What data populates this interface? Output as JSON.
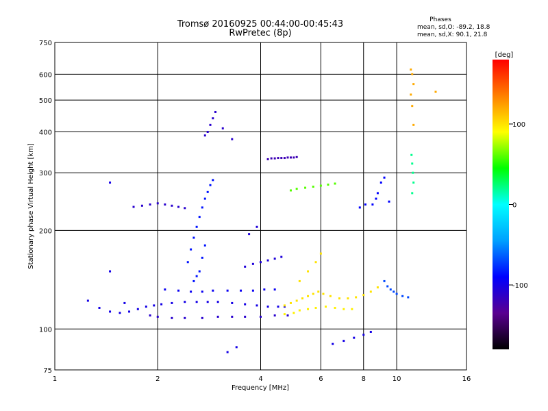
{
  "chart_data": {
    "type": "scatter",
    "title": "Tromsø 20160925 00:44:00-00:45:43",
    "subtitle": "RwPretec (8p)",
    "stats": {
      "heading": "Phases",
      "line_o": "mean, sd,O: -89.2, 18.8",
      "line_x": "mean, sd,X: 90.1, 21.8"
    },
    "xlabel": "Frequency [MHz]",
    "ylabel": "Stationary phase Virtual Height [km]",
    "x_scale": "log",
    "y_scale": "log",
    "xlim": [
      1,
      16
    ],
    "ylim": [
      75,
      750
    ],
    "x_ticks": [
      1,
      2,
      4,
      6,
      8,
      10,
      16
    ],
    "x_tick_labels": [
      "1",
      "2",
      "4",
      "6",
      "8",
      "10",
      "16"
    ],
    "y_ticks": [
      75,
      100,
      200,
      300,
      400,
      500,
      600,
      750
    ],
    "y_tick_labels": [
      "75",
      "100",
      "200",
      "300",
      "400",
      "500",
      "600",
      "750"
    ],
    "grid": true,
    "colorbar": {
      "label": "[deg]",
      "ticks": [
        100,
        0,
        -100
      ],
      "tick_labels": [
        "100",
        "0",
        "-100"
      ],
      "range": [
        -180,
        180
      ],
      "colors": [
        "#000000",
        "#5a0090",
        "#0000ff",
        "#00a0ff",
        "#00ffff",
        "#00ff00",
        "#ffff00",
        "#ff8000",
        "#ff0000"
      ]
    },
    "series": [
      {
        "name": "",
        "phase": -100,
        "x": [
          1.25,
          1.35,
          1.45,
          1.55,
          1.65,
          1.75,
          1.85,
          1.95,
          2.05,
          2.2,
          2.4,
          2.6,
          2.8,
          3.0,
          3.3,
          3.6,
          3.9,
          4.2,
          4.5,
          4.7
        ],
        "y": [
          122,
          116,
          113,
          112,
          113,
          115,
          117,
          118,
          119,
          120,
          121,
          121,
          121,
          121,
          120,
          119,
          118,
          117,
          117,
          117
        ]
      },
      {
        "name": "",
        "phase": -110,
        "x": [
          1.9,
          2.0,
          2.2,
          2.4,
          2.7,
          3.0,
          3.3,
          3.6,
          4.0,
          4.4,
          4.8
        ],
        "y": [
          110,
          109,
          108,
          108,
          108,
          109,
          109,
          109,
          109,
          110,
          110
        ]
      },
      {
        "name": "",
        "phase": -85,
        "x": [
          2.45,
          2.5,
          2.55,
          2.6,
          2.65,
          2.7,
          2.75,
          2.8,
          2.85,
          2.9,
          2.65,
          2.7,
          2.75,
          2.6,
          2.55
        ],
        "y": [
          160,
          175,
          190,
          205,
          220,
          235,
          250,
          262,
          275,
          285,
          150,
          165,
          180,
          145,
          140
        ]
      },
      {
        "name": "",
        "phase": -110,
        "x": [
          2.75,
          2.8,
          2.85,
          2.9,
          2.95,
          3.1,
          3.3
        ],
        "y": [
          390,
          400,
          420,
          440,
          460,
          410,
          380
        ]
      },
      {
        "name": "",
        "phase": -95,
        "x": [
          2.1,
          2.3,
          2.5,
          2.7,
          2.9,
          3.2,
          3.5,
          3.8,
          4.1,
          4.4
        ],
        "y": [
          132,
          131,
          130,
          130,
          131,
          131,
          131,
          131,
          132,
          132
        ]
      },
      {
        "name": "",
        "phase": -110,
        "x": [
          1.7,
          1.8,
          1.9,
          2.0,
          2.1,
          2.2,
          2.3,
          2.4
        ],
        "y": [
          236,
          238,
          240,
          242,
          240,
          238,
          236,
          234
        ]
      },
      {
        "name": "",
        "phase": -105,
        "x": [
          3.6,
          3.8,
          4.0,
          4.2,
          4.4,
          4.6,
          3.7,
          3.9
        ],
        "y": [
          155,
          158,
          160,
          162,
          164,
          166,
          195,
          205
        ]
      },
      {
        "name": "",
        "phase": 100,
        "x": [
          4.7,
          4.9,
          5.1,
          5.3,
          5.5,
          5.7,
          5.9,
          6.1,
          6.4,
          6.8,
          7.2,
          7.6,
          8.0,
          8.4,
          8.8,
          5.2,
          5.5,
          5.8,
          6.0
        ],
        "y": [
          118,
          120,
          122,
          124,
          126,
          128,
          130,
          128,
          126,
          124,
          124,
          125,
          127,
          130,
          134,
          140,
          150,
          160,
          170
        ]
      },
      {
        "name": "",
        "phase": 95,
        "x": [
          4.7,
          5.0,
          5.2,
          5.5,
          5.8,
          6.2,
          6.6,
          7.0,
          7.4
        ],
        "y": [
          111,
          112,
          114,
          115,
          116,
          117,
          116,
          115,
          115
        ]
      },
      {
        "name": "",
        "phase": 60,
        "x": [
          4.9,
          5.1,
          5.4,
          5.7,
          6.0,
          6.3,
          6.6
        ],
        "y": [
          265,
          268,
          270,
          272,
          274,
          276,
          278
        ]
      },
      {
        "name": "",
        "phase": -120,
        "x": [
          4.2,
          4.3,
          4.4,
          4.5,
          4.6,
          4.7,
          4.8,
          4.9,
          5.0,
          5.1
        ],
        "y": [
          330,
          332,
          332,
          333,
          333,
          333,
          334,
          334,
          334,
          335
        ]
      },
      {
        "name": "",
        "phase": -90,
        "x": [
          8.5,
          8.7,
          8.8,
          9.0,
          9.2,
          9.5,
          7.8,
          8.1
        ],
        "y": [
          240,
          250,
          260,
          280,
          290,
          245,
          235,
          240
        ]
      },
      {
        "name": "",
        "phase": 120,
        "x": [
          11.0,
          11.1,
          11.2,
          11.0,
          11.1,
          11.2,
          13.0
        ],
        "y": [
          620,
          600,
          560,
          520,
          480,
          420,
          530
        ]
      },
      {
        "name": "",
        "phase": 20,
        "x": [
          11.05,
          11.1,
          11.15,
          11.2,
          11.1
        ],
        "y": [
          340,
          320,
          300,
          280,
          260
        ]
      },
      {
        "name": "",
        "phase": -70,
        "x": [
          9.2,
          9.4,
          9.6,
          9.8,
          10.0,
          10.4,
          10.8
        ],
        "y": [
          140,
          135,
          132,
          130,
          128,
          126,
          125
        ]
      },
      {
        "name": "",
        "phase": -100,
        "x": [
          6.5,
          7.0,
          7.5,
          8.0,
          8.4,
          3.2,
          3.4,
          1.45,
          1.6,
          1.45
        ],
        "y": [
          90,
          92,
          94,
          96,
          98,
          85,
          88,
          150,
          120,
          280
        ]
      }
    ]
  }
}
